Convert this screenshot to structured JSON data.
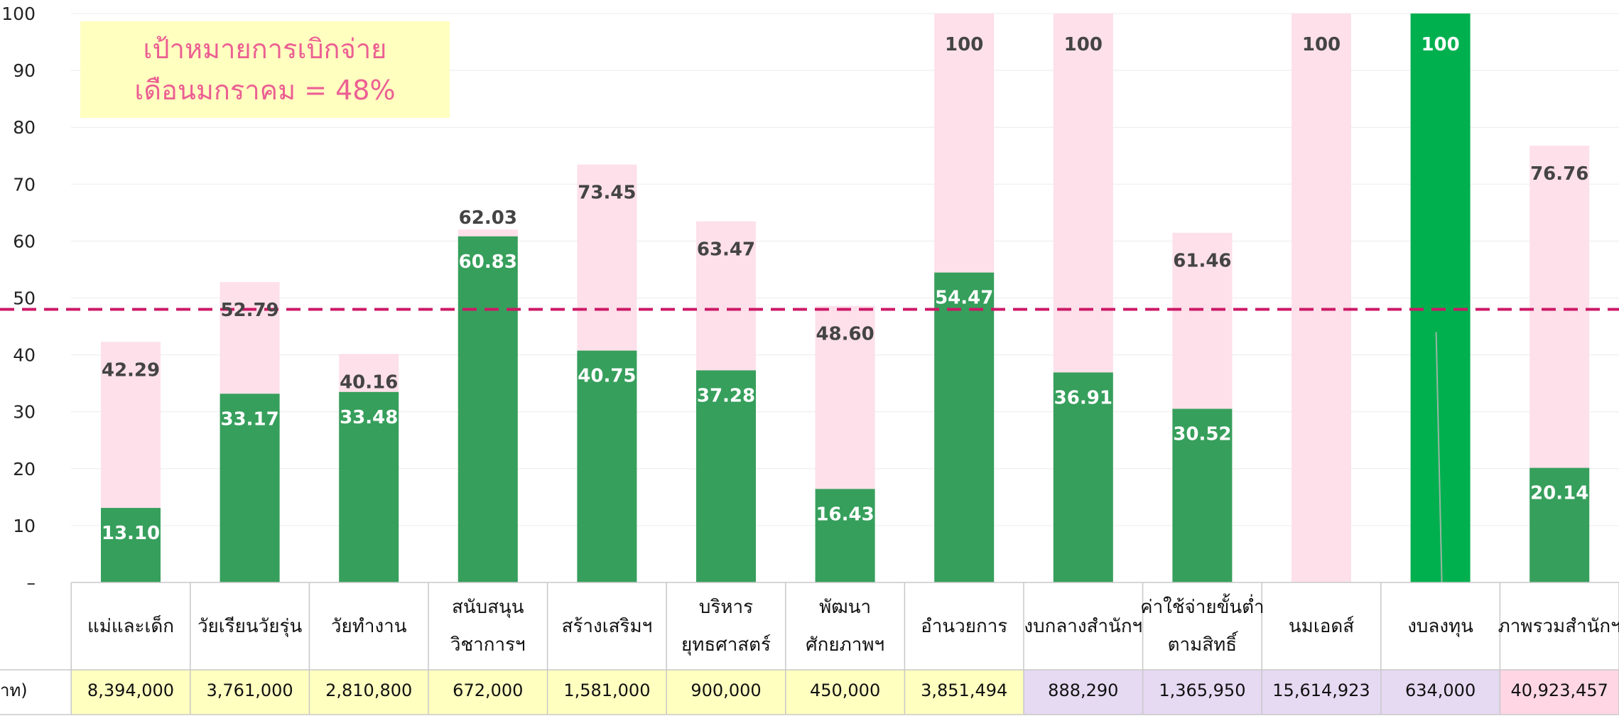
{
  "target_note": {
    "line1": "เป้าหมายการเบิกจ่าย",
    "line2": "เดือนมกราคม = 48%"
  },
  "colors": {
    "target_bar": "#fde0ea",
    "actual_bar": "#369f5c",
    "actual_bar_highlight": "#00b04f",
    "target_line": "#cc1866",
    "budget_yellow": "#ffffc0",
    "budget_purple": "#e6d9f2",
    "budget_pink": "#ffd6e4"
  },
  "chart_data": {
    "type": "bar",
    "ylim": [
      0,
      100
    ],
    "yticks": [
      "100",
      "90",
      "80",
      "70",
      "60",
      "50",
      "40",
      "30",
      "20",
      "10",
      "–"
    ],
    "target_line_value": 48,
    "categories": [
      [
        "แม่และเด็ก"
      ],
      [
        "วัยเรียนวัยรุ่น"
      ],
      [
        "วัยทำงาน"
      ],
      [
        "สนับสนุน",
        "วิชาการฯ"
      ],
      [
        "สร้างเสริมฯ"
      ],
      [
        "บริหาร",
        "ยุทธศาสตร์"
      ],
      [
        "พัฒนา",
        "ศักยภาพฯ"
      ],
      [
        "อำนวยการ"
      ],
      [
        "งบกลางสำนักฯ"
      ],
      [
        "ค่าใช้จ่ายขั้นต่ำ",
        "ตามสิทธิ์"
      ],
      [
        "นมเอดส์"
      ],
      [
        "งบลงทุน"
      ],
      [
        "ภาพรวมสำนักฯ"
      ]
    ],
    "series": [
      {
        "values": [
          42.29,
          52.79,
          40.16,
          62.03,
          73.45,
          63.47,
          48.6,
          100,
          100,
          61.46,
          100,
          100,
          76.76
        ],
        "labels": [
          "42.29",
          "52.79",
          "40.16",
          "62.03",
          "73.45",
          "63.47",
          "48.60",
          "100",
          "100",
          "61.46",
          "100",
          "100",
          "76.76"
        ]
      },
      {
        "values": [
          13.1,
          33.17,
          33.48,
          60.83,
          40.75,
          37.28,
          16.43,
          54.47,
          36.91,
          30.52,
          0,
          100,
          20.14
        ],
        "labels": [
          "13.10",
          "33.17",
          "33.48",
          "60.83",
          "40.75",
          "37.28",
          "16.43",
          "54.47",
          "36.91",
          "30.52",
          "",
          "",
          "20.14"
        ]
      }
    ],
    "budget_row": {
      "label": "าท)",
      "values": [
        "8,394,000",
        "3,761,000",
        "2,810,800",
        "672,000",
        "1,581,000",
        "900,000",
        "450,000",
        "3,851,494",
        "888,290",
        "1,365,950",
        "15,614,923",
        "634,000",
        "40,923,457"
      ]
    }
  }
}
